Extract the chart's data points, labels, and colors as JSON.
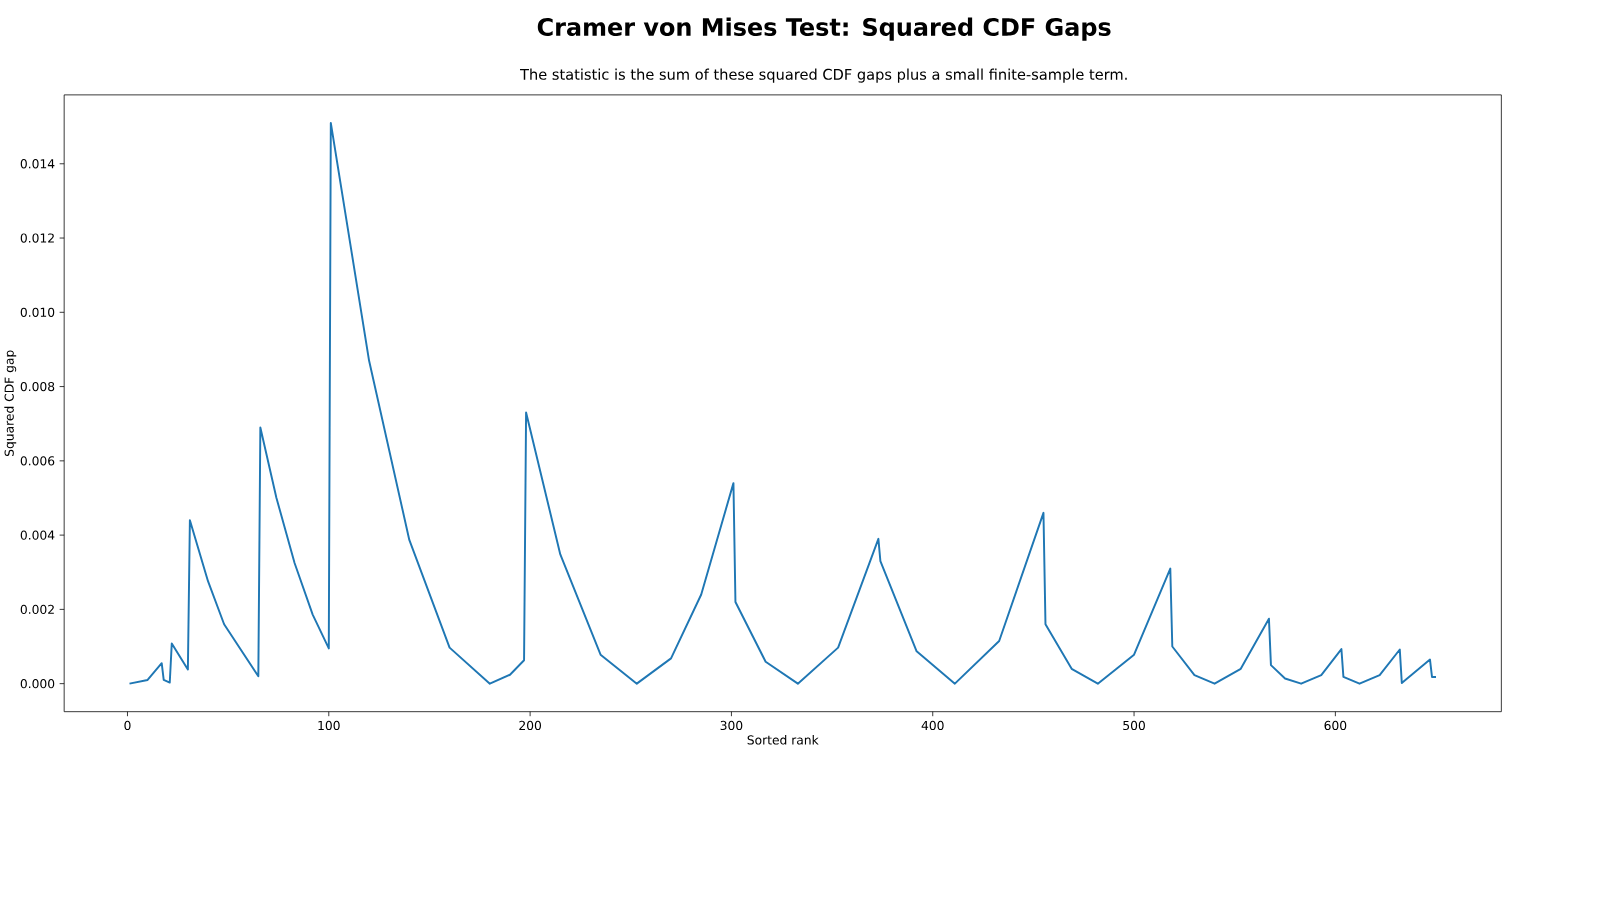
{
  "chart_data": {
    "type": "line",
    "title": "Cramer von Mises Test: Squared CDF Gaps",
    "subtitle": "The statistic is the sum of these squared CDF gaps plus a small finite-sample term.",
    "xlabel": "Sorted rank",
    "ylabel": "Squared CDF gap",
    "color": "#1f77b4",
    "x": [
      1,
      10,
      17,
      18,
      21,
      22,
      30,
      31,
      40,
      48,
      65,
      66,
      74,
      83,
      92,
      100,
      101,
      120,
      140,
      160,
      180,
      190,
      197,
      198,
      215,
      235,
      253,
      270,
      285,
      301,
      302,
      317,
      333,
      353,
      373,
      374,
      392,
      411,
      433,
      455,
      456,
      469,
      482,
      500,
      518,
      519,
      530,
      540,
      553,
      567,
      568,
      575,
      583,
      593,
      603,
      604,
      612,
      622,
      632,
      633,
      647,
      648,
      650
    ],
    "values": [
      0,
      0.0001,
      0.00055,
      0.0001,
      3e-05,
      0.00108,
      0.00038,
      0.0044,
      0.00276,
      0.0016,
      0.0002,
      0.0069,
      0.005,
      0.00325,
      0.00186,
      0.00095,
      0.0151,
      0.0087,
      0.00387,
      0.00097,
      0,
      0.00024,
      0.00063,
      0.0073,
      0.00348,
      0.00078,
      0,
      0.00068,
      0.0024,
      0.0054,
      0.0022,
      0.00059,
      0,
      0.00097,
      0.0039,
      0.0033,
      0.00087,
      0,
      0.00115,
      0.0046,
      0.0016,
      0.0004,
      0,
      0.00078,
      0.0031,
      0.001,
      0.00023,
      0,
      0.0004,
      0.00175,
      0.0005,
      0.00014,
      0,
      0.00023,
      0.00093,
      0.00018,
      0,
      0.00023,
      0.00092,
      2e-05,
      0.00065,
      0.00018,
      0.00018
    ],
    "xlim": [
      -31.45,
      682.45
    ],
    "ylim": [
      -0.000755,
      0.015855
    ],
    "xticks": [
      0,
      100,
      200,
      300,
      400,
      500,
      600
    ],
    "yticks": [
      {
        "value": 0,
        "label": "0.000"
      },
      {
        "value": 0.002,
        "label": "0.002"
      },
      {
        "value": 0.004,
        "label": "0.004"
      },
      {
        "value": 0.006,
        "label": "0.006"
      },
      {
        "value": 0.008,
        "label": "0.008"
      },
      {
        "value": 0.01,
        "label": "0.010"
      },
      {
        "value": 0.012,
        "label": "0.012"
      },
      {
        "value": 0.014,
        "label": "0.014"
      }
    ]
  }
}
